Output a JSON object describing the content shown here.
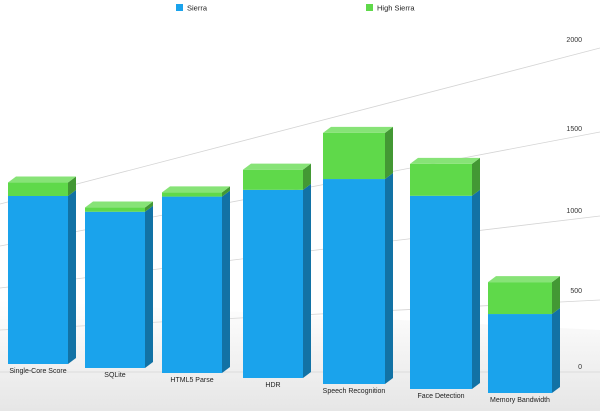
{
  "chart_data": {
    "type": "bar",
    "stacked": true,
    "three_d": true,
    "categories": [
      "Single-Core Score",
      "SQLite",
      "HTML5 Parse",
      "HDR",
      "Speech Recognition",
      "Face Detection",
      "Memory Bandwidth"
    ],
    "series": [
      {
        "name": "Sierra",
        "values": [
          1000,
          930,
          1050,
          1120,
          1220,
          1150,
          470
        ],
        "color": "#1aa3ec"
      },
      {
        "name": "High Sierra",
        "values": [
          80,
          25,
          25,
          120,
          275,
          190,
          190
        ],
        "color": "#5fd94a"
      }
    ],
    "yticks": [
      0,
      500,
      1000,
      1500,
      2000
    ],
    "ylim": [
      0,
      2000
    ],
    "grid": true,
    "legend_position": "top-center",
    "title": "",
    "xlabel": "",
    "ylabel": ""
  }
}
